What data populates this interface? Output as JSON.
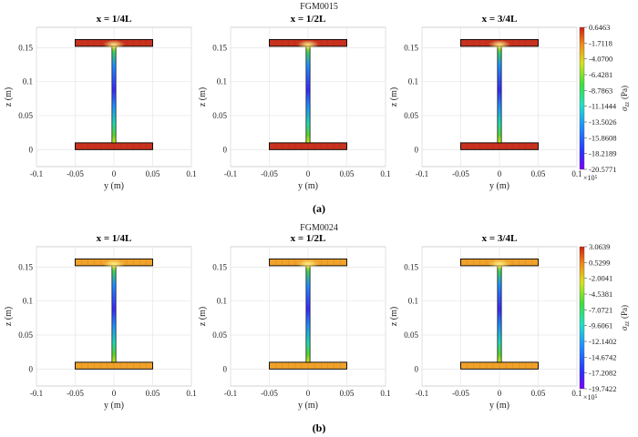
{
  "chart_data": [
    {
      "type": "heatmap",
      "figure_title": "FGM0015",
      "panel_label": "(a)",
      "flange_color": "#c8321e",
      "subplots": [
        {
          "title": "x = 1/4L",
          "xlabel": "y (m)",
          "ylabel": "z (m)"
        },
        {
          "title": "x = 1/2L",
          "xlabel": "y (m)",
          "ylabel": "z (m)"
        },
        {
          "title": "x = 3/4L",
          "xlabel": "y (m)",
          "ylabel": "z (m)"
        }
      ],
      "xlim": [
        -0.1,
        0.1
      ],
      "ylim": [
        -0.025,
        0.18
      ],
      "xticks": [
        -0.1,
        -0.05,
        0,
        0.05,
        0.1
      ],
      "xtick_labels": [
        "-0.1",
        "-0.05",
        "0",
        "0.05",
        "0.1"
      ],
      "yticks": [
        0,
        0.05,
        0.1,
        0.15
      ],
      "ytick_labels": [
        "0",
        "0.05",
        "0.1",
        "0.15"
      ],
      "section": {
        "flange_width": [
          -0.05,
          0.05
        ],
        "bottom_flange_z": [
          0,
          0.01
        ],
        "top_flange_z": [
          0.152,
          0.162
        ],
        "web_z": [
          0.01,
          0.152
        ]
      },
      "colorbar": {
        "label": "σ_zz (Pa)",
        "label_main": "σ",
        "label_sub": "zz",
        "label_unit": "(Pa)",
        "exponent": "×10⁵",
        "ticks": [
          "0.6463",
          "-1.7118",
          "-4.0700",
          "-6.4281",
          "-8.7863",
          "-11.1444",
          "-13.5026",
          "-15.8608",
          "-18.2189",
          "-20.5771"
        ]
      }
    },
    {
      "type": "heatmap",
      "figure_title": "FGM0024",
      "panel_label": "(b)",
      "flange_color": "#f0a22a",
      "subplots": [
        {
          "title": "x = 1/4L",
          "xlabel": "y (m)",
          "ylabel": "z (m)"
        },
        {
          "title": "x = 1/2L",
          "xlabel": "y (m)",
          "ylabel": "z (m)"
        },
        {
          "title": "x = 3/4L",
          "xlabel": "y (m)",
          "ylabel": "z (m)"
        }
      ],
      "xlim": [
        -0.1,
        0.1
      ],
      "ylim": [
        -0.025,
        0.18
      ],
      "xticks": [
        -0.1,
        -0.05,
        0,
        0.05,
        0.1
      ],
      "xtick_labels": [
        "-0.1",
        "-0.05",
        "0",
        "0.05",
        "0.1"
      ],
      "yticks": [
        0,
        0.05,
        0.1,
        0.15
      ],
      "ytick_labels": [
        "0",
        "0.05",
        "0.1",
        "0.15"
      ],
      "section": {
        "flange_width": [
          -0.05,
          0.05
        ],
        "bottom_flange_z": [
          0,
          0.01
        ],
        "top_flange_z": [
          0.152,
          0.162
        ],
        "web_z": [
          0.01,
          0.152
        ]
      },
      "colorbar": {
        "label": "σ_zz (Pa)",
        "label_main": "σ",
        "label_sub": "zz",
        "label_unit": "(Pa)",
        "exponent": "×10⁵",
        "ticks": [
          "3.0639",
          "0.5299",
          "-2.0041",
          "-4.5381",
          "-7.0721",
          "-9.6061",
          "-12.1402",
          "-14.6742",
          "-17.2082",
          "-19.7422"
        ]
      }
    }
  ]
}
